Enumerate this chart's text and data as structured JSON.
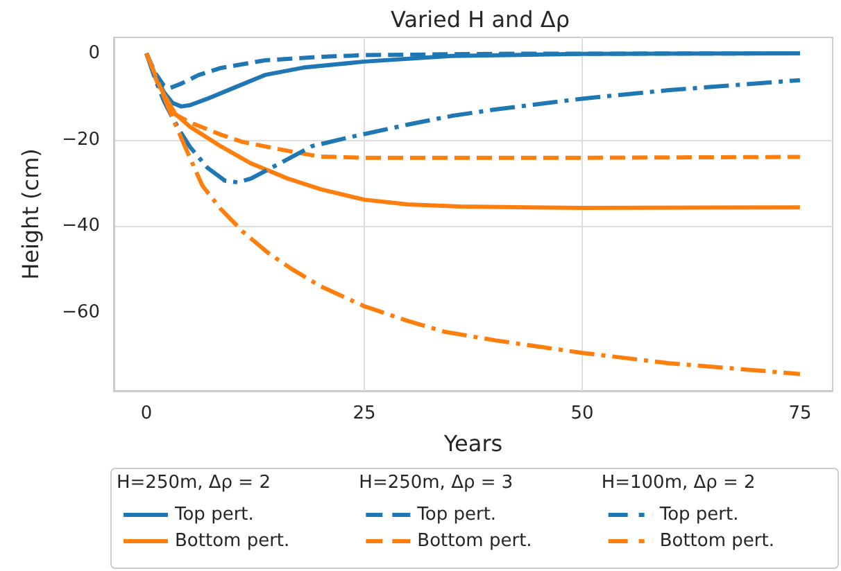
{
  "chart_data": {
    "type": "line",
    "title": "Varied H and Δρ",
    "xlabel": "Years",
    "ylabel": "Height (cm)",
    "annotations": [
      "H=250m, Δρ = 2",
      "H=250m, Δρ = 3",
      "H=100m, Δρ = 2"
    ],
    "xlim": [
      -3.75,
      78.75
    ],
    "ylim": [
      -78.2,
      3.7
    ],
    "xticks": [
      0,
      25,
      50,
      75
    ],
    "yticks": [
      -60,
      -40,
      -20,
      0
    ],
    "grid": true,
    "legend": "bottom",
    "marker": "none",
    "series": [
      {
        "name": "Top pert.",
        "color": "#1f77b4",
        "line_style": "solid",
        "x": [
          0,
          1,
          2,
          3,
          4,
          5,
          7,
          10,
          13.6,
          18,
          25,
          35,
          50,
          75
        ],
        "values": [
          0,
          -5,
          -9,
          -11.5,
          -12.3,
          -12,
          -10.5,
          -8,
          -5,
          -3.3,
          -1.9,
          -0.6,
          -0.1,
          0
        ]
      },
      {
        "name": "Bottom pert.",
        "color": "#ff7f0e",
        "line_style": "solid",
        "x": [
          0,
          1,
          2,
          3.3,
          5,
          8.5,
          12,
          16.2,
          20,
          25,
          30,
          36,
          50,
          75
        ],
        "values": [
          0,
          -5.5,
          -9.5,
          -14,
          -17,
          -21.5,
          -25.5,
          -29,
          -31.5,
          -33.9,
          -35,
          -35.5,
          -35.8,
          -35.7
        ]
      },
      {
        "name": "Top pert.",
        "color": "#1f77b4",
        "line_style": "dashed",
        "x": [
          0,
          1,
          2,
          2.6,
          4,
          6,
          8.5,
          13.6,
          20,
          25,
          40,
          75
        ],
        "values": [
          0,
          -4.5,
          -7.5,
          -8.1,
          -7,
          -5,
          -3.4,
          -1.6,
          -0.8,
          -0.4,
          -0.1,
          0
        ]
      },
      {
        "name": "Bottom pert.",
        "color": "#ff7f0e",
        "line_style": "dashed",
        "x": [
          0,
          1,
          2.6,
          5,
          8.5,
          11,
          14.7,
          19.8,
          25,
          50,
          75
        ],
        "values": [
          0,
          -5.5,
          -13.4,
          -16,
          -18.8,
          -20.5,
          -22,
          -23.9,
          -24.2,
          -24.2,
          -24
        ]
      },
      {
        "name": "Top pert.",
        "color": "#1f77b4",
        "line_style": "dashdot",
        "x": [
          0,
          1,
          2,
          3,
          4,
          5,
          7,
          9,
          10.5,
          12,
          15,
          19,
          23.4,
          30,
          35,
          40,
          50,
          60,
          75
        ],
        "values": [
          0,
          -6,
          -11,
          -15,
          -18.5,
          -21.7,
          -26.5,
          -29.5,
          -29.9,
          -29,
          -25.8,
          -21.5,
          -19.4,
          -16.5,
          -14.5,
          -13,
          -10.5,
          -8.5,
          -6.2
        ]
      },
      {
        "name": "Bottom pert.",
        "color": "#ff7f0e",
        "line_style": "dashdot",
        "x": [
          0,
          1,
          2,
          3,
          4.4,
          6.4,
          8.5,
          11.1,
          14,
          16.7,
          20,
          25,
          30,
          34.2,
          40,
          50,
          60,
          75
        ],
        "values": [
          0,
          -5,
          -10,
          -15,
          -21.5,
          -30.6,
          -36,
          -41.4,
          -46.3,
          -50,
          -54,
          -58.6,
          -62,
          -64.5,
          -66.5,
          -69.4,
          -71.8,
          -74.3
        ]
      }
    ]
  }
}
